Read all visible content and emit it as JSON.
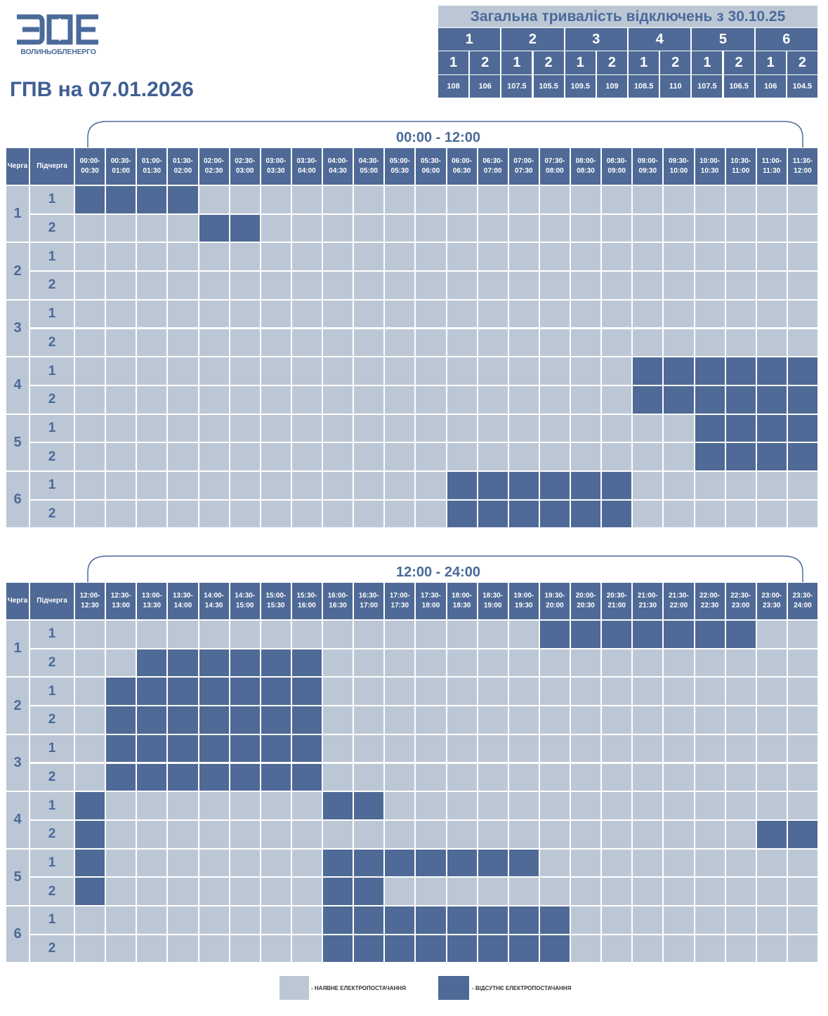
{
  "logo": {
    "name": "ВОЛИНЬОБЛЕНЕРГО"
  },
  "title": "ГПВ на 07.01.2026",
  "summary": {
    "title": "Загальна тривалість відключень з 30.10.25",
    "queues": [
      "1",
      "2",
      "3",
      "4",
      "5",
      "6"
    ],
    "subqueues": [
      "1",
      "2",
      "1",
      "2",
      "1",
      "2",
      "1",
      "2",
      "1",
      "2",
      "1",
      "2"
    ],
    "values": [
      108,
      106,
      107.5,
      105.5,
      109.5,
      109,
      108.5,
      110,
      107.5,
      106.5,
      106,
      104.5
    ]
  },
  "schedules": [
    {
      "period": "00:00 - 12:00",
      "header": {
        "queue": "Черга",
        "subqueue": "Підчерга"
      },
      "slots": [
        "00:00-00:30",
        "00:30-01:00",
        "01:00-01:30",
        "01:30-02:00",
        "02:00-02:30",
        "02:30-03:00",
        "03:00-03:30",
        "03:30-04:00",
        "04:00-04:30",
        "04:30-05:00",
        "05:00-05:30",
        "05:30-06:00",
        "06:00-06:30",
        "06:30-07:00",
        "07:00-07:30",
        "07:30-08:00",
        "08:00-08:30",
        "08:30-09:00",
        "09:00-09:30",
        "09:30-10:00",
        "10:00-10:30",
        "10:30-11:00",
        "11:00-11:30",
        "11:30-12:00"
      ],
      "queues": [
        {
          "label": "1",
          "subqueues": [
            {
              "label": "1",
              "off": [
                1,
                1,
                1,
                1,
                0,
                0,
                0,
                0,
                0,
                0,
                0,
                0,
                0,
                0,
                0,
                0,
                0,
                0,
                0,
                0,
                0,
                0,
                0,
                0
              ]
            },
            {
              "label": "2",
              "off": [
                0,
                0,
                0,
                0,
                1,
                1,
                0,
                0,
                0,
                0,
                0,
                0,
                0,
                0,
                0,
                0,
                0,
                0,
                0,
                0,
                0,
                0,
                0,
                0
              ]
            }
          ]
        },
        {
          "label": "2",
          "subqueues": [
            {
              "label": "1",
              "off": [
                0,
                0,
                0,
                0,
                0,
                0,
                0,
                0,
                0,
                0,
                0,
                0,
                0,
                0,
                0,
                0,
                0,
                0,
                0,
                0,
                0,
                0,
                0,
                0
              ]
            },
            {
              "label": "2",
              "off": [
                0,
                0,
                0,
                0,
                0,
                0,
                0,
                0,
                0,
                0,
                0,
                0,
                0,
                0,
                0,
                0,
                0,
                0,
                0,
                0,
                0,
                0,
                0,
                0
              ]
            }
          ]
        },
        {
          "label": "3",
          "subqueues": [
            {
              "label": "1",
              "off": [
                0,
                0,
                0,
                0,
                0,
                0,
                0,
                0,
                0,
                0,
                0,
                0,
                0,
                0,
                0,
                0,
                0,
                0,
                0,
                0,
                0,
                0,
                0,
                0
              ]
            },
            {
              "label": "2",
              "off": [
                0,
                0,
                0,
                0,
                0,
                0,
                0,
                0,
                0,
                0,
                0,
                0,
                0,
                0,
                0,
                0,
                0,
                0,
                0,
                0,
                0,
                0,
                0,
                0
              ]
            }
          ]
        },
        {
          "label": "4",
          "subqueues": [
            {
              "label": "1",
              "off": [
                0,
                0,
                0,
                0,
                0,
                0,
                0,
                0,
                0,
                0,
                0,
                0,
                0,
                0,
                0,
                0,
                0,
                0,
                1,
                1,
                1,
                1,
                1,
                1
              ]
            },
            {
              "label": "2",
              "off": [
                0,
                0,
                0,
                0,
                0,
                0,
                0,
                0,
                0,
                0,
                0,
                0,
                0,
                0,
                0,
                0,
                0,
                0,
                1,
                1,
                1,
                1,
                1,
                1
              ]
            }
          ]
        },
        {
          "label": "5",
          "subqueues": [
            {
              "label": "1",
              "off": [
                0,
                0,
                0,
                0,
                0,
                0,
                0,
                0,
                0,
                0,
                0,
                0,
                0,
                0,
                0,
                0,
                0,
                0,
                0,
                0,
                1,
                1,
                1,
                1
              ]
            },
            {
              "label": "2",
              "off": [
                0,
                0,
                0,
                0,
                0,
                0,
                0,
                0,
                0,
                0,
                0,
                0,
                0,
                0,
                0,
                0,
                0,
                0,
                0,
                0,
                1,
                1,
                1,
                1
              ]
            }
          ]
        },
        {
          "label": "6",
          "subqueues": [
            {
              "label": "1",
              "off": [
                0,
                0,
                0,
                0,
                0,
                0,
                0,
                0,
                0,
                0,
                0,
                0,
                1,
                1,
                1,
                1,
                1,
                1,
                0,
                0,
                0,
                0,
                0,
                0
              ]
            },
            {
              "label": "2",
              "off": [
                0,
                0,
                0,
                0,
                0,
                0,
                0,
                0,
                0,
                0,
                0,
                0,
                1,
                1,
                1,
                1,
                1,
                1,
                0,
                0,
                0,
                0,
                0,
                0
              ]
            }
          ]
        }
      ]
    },
    {
      "period": "12:00 - 24:00",
      "header": {
        "queue": "Черга",
        "subqueue": "Підчерга"
      },
      "slots": [
        "12:00-12:30",
        "12:30-13:00",
        "13:00-13:30",
        "13:30-14:00",
        "14:00-14:30",
        "14:30-15:00",
        "15:00-15:30",
        "15:30-16:00",
        "16:00-16:30",
        "16:30-17:00",
        "17:00-17:30",
        "17:30-18:00",
        "18:00-18:30",
        "18:30-19:00",
        "19:00-19:30",
        "19:30-20:00",
        "20:00-20:30",
        "20:30-21:00",
        "21:00-21:30",
        "21:30-22:00",
        "22:00-22:30",
        "22:30-23:00",
        "23:00-23:30",
        "23:30-24:00"
      ],
      "queues": [
        {
          "label": "1",
          "subqueues": [
            {
              "label": "1",
              "off": [
                0,
                0,
                0,
                0,
                0,
                0,
                0,
                0,
                0,
                0,
                0,
                0,
                0,
                0,
                0,
                1,
                1,
                1,
                1,
                1,
                1,
                1,
                0,
                0
              ]
            },
            {
              "label": "2",
              "off": [
                0,
                0,
                1,
                1,
                1,
                1,
                1,
                1,
                0,
                0,
                0,
                0,
                0,
                0,
                0,
                0,
                0,
                0,
                0,
                0,
                0,
                0,
                0,
                0
              ]
            }
          ]
        },
        {
          "label": "2",
          "subqueues": [
            {
              "label": "1",
              "off": [
                0,
                1,
                1,
                1,
                1,
                1,
                1,
                1,
                0,
                0,
                0,
                0,
                0,
                0,
                0,
                0,
                0,
                0,
                0,
                0,
                0,
                0,
                0,
                0
              ]
            },
            {
              "label": "2",
              "off": [
                0,
                1,
                1,
                1,
                1,
                1,
                1,
                1,
                0,
                0,
                0,
                0,
                0,
                0,
                0,
                0,
                0,
                0,
                0,
                0,
                0,
                0,
                0,
                0
              ]
            }
          ]
        },
        {
          "label": "3",
          "subqueues": [
            {
              "label": "1",
              "off": [
                0,
                1,
                1,
                1,
                1,
                1,
                1,
                1,
                0,
                0,
                0,
                0,
                0,
                0,
                0,
                0,
                0,
                0,
                0,
                0,
                0,
                0,
                0,
                0
              ]
            },
            {
              "label": "2",
              "off": [
                0,
                1,
                1,
                1,
                1,
                1,
                1,
                1,
                0,
                0,
                0,
                0,
                0,
                0,
                0,
                0,
                0,
                0,
                0,
                0,
                0,
                0,
                0,
                0
              ]
            }
          ]
        },
        {
          "label": "4",
          "subqueues": [
            {
              "label": "1",
              "off": [
                1,
                0,
                0,
                0,
                0,
                0,
                0,
                0,
                1,
                1,
                0,
                0,
                0,
                0,
                0,
                0,
                0,
                0,
                0,
                0,
                0,
                0,
                0,
                0
              ]
            },
            {
              "label": "2",
              "off": [
                1,
                0,
                0,
                0,
                0,
                0,
                0,
                0,
                0,
                0,
                0,
                0,
                0,
                0,
                0,
                0,
                0,
                0,
                0,
                0,
                0,
                0,
                1,
                1
              ]
            }
          ]
        },
        {
          "label": "5",
          "subqueues": [
            {
              "label": "1",
              "off": [
                1,
                0,
                0,
                0,
                0,
                0,
                0,
                0,
                1,
                1,
                1,
                1,
                1,
                1,
                1,
                0,
                0,
                0,
                0,
                0,
                0,
                0,
                0,
                0
              ]
            },
            {
              "label": "2",
              "off": [
                1,
                0,
                0,
                0,
                0,
                0,
                0,
                0,
                1,
                1,
                0,
                0,
                0,
                0,
                0,
                0,
                0,
                0,
                0,
                0,
                0,
                0,
                0,
                0
              ]
            }
          ]
        },
        {
          "label": "6",
          "subqueues": [
            {
              "label": "1",
              "off": [
                0,
                0,
                0,
                0,
                0,
                0,
                0,
                0,
                1,
                1,
                1,
                1,
                1,
                1,
                1,
                1,
                0,
                0,
                0,
                0,
                0,
                0,
                0,
                0
              ]
            },
            {
              "label": "2",
              "off": [
                0,
                0,
                0,
                0,
                0,
                0,
                0,
                0,
                1,
                1,
                1,
                1,
                1,
                1,
                1,
                1,
                0,
                0,
                0,
                0,
                0,
                0,
                0,
                0
              ]
            }
          ]
        }
      ]
    }
  ],
  "legend": {
    "on": "- НАЯВНЕ ЕЛЕКТРОПОСТАЧАННЯ",
    "off": "- ВІДСУТНЄ ЕЛЕКТРОПОСТАЧАННЯ"
  }
}
